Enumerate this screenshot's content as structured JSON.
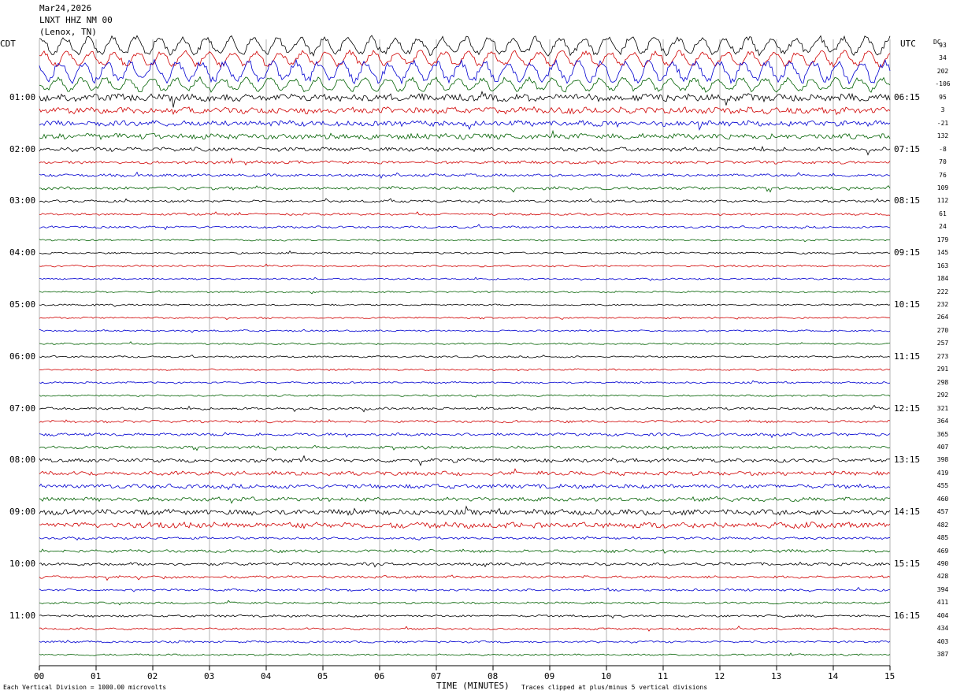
{
  "header": {
    "date": "Mar24,2026",
    "station": "LNXT HHZ NM 00",
    "location": "(Lenox, TN)"
  },
  "left_tz": "CDT",
  "right_tz": "UTC",
  "dc_label": "DC",
  "footer": {
    "left": "Each Vertical Division = 1000.00 microvolts",
    "center": "TIME (MINUTES)",
    "right": "Traces clipped at plus/minus 5 vertical divisions"
  },
  "colors": {
    "trace_cycle": [
      "#000000",
      "#d00000",
      "#0000d0",
      "#006000"
    ],
    "grid": "#808080"
  },
  "chart_data": {
    "type": "line",
    "xlabel": "TIME (MINUTES)",
    "x_ticks": [
      "00",
      "01",
      "02",
      "03",
      "04",
      "05",
      "06",
      "07",
      "08",
      "09",
      "10",
      "11",
      "12",
      "13",
      "14",
      "15"
    ],
    "xlim": [
      0,
      15
    ],
    "left_hour_labels": [
      "01:00",
      "02:00",
      "03:00",
      "04:00",
      "05:00",
      "06:00",
      "07:00",
      "08:00",
      "09:00",
      "10:00",
      "11:00"
    ],
    "right_hour_labels": [
      "06:15",
      "07:15",
      "08:15",
      "09:15",
      "10:15",
      "11:15",
      "12:15",
      "13:15",
      "14:15",
      "15:15",
      "16:15"
    ],
    "trace_count": 48,
    "dc_offsets": [
      93,
      34,
      202,
      -106,
      95,
      3,
      -21,
      132,
      -8,
      70,
      76,
      109,
      112,
      61,
      24,
      179,
      145,
      163,
      184,
      222,
      232,
      264,
      270,
      257,
      273,
      291,
      298,
      292,
      321,
      364,
      365,
      407,
      398,
      419,
      455,
      460,
      457,
      482,
      485,
      469,
      490,
      428,
      394,
      411,
      404,
      434,
      403,
      387
    ],
    "amplitude_profile": [
      12,
      10,
      14,
      9,
      4,
      3.5,
      3,
      3,
      2.2,
      1.6,
      1.5,
      1.6,
      1.3,
      1.2,
      1.2,
      1,
      1,
      1,
      0.9,
      0.9,
      0.9,
      0.9,
      0.9,
      0.9,
      1,
      1,
      1,
      1,
      1.4,
      1.4,
      1.6,
      1.6,
      2,
      2.2,
      2.3,
      2.2,
      3,
      3.2,
      1.3,
      1.6,
      1.6,
      1.4,
      1.2,
      1.1,
      1.2,
      1.1,
      1.1,
      1
    ]
  }
}
